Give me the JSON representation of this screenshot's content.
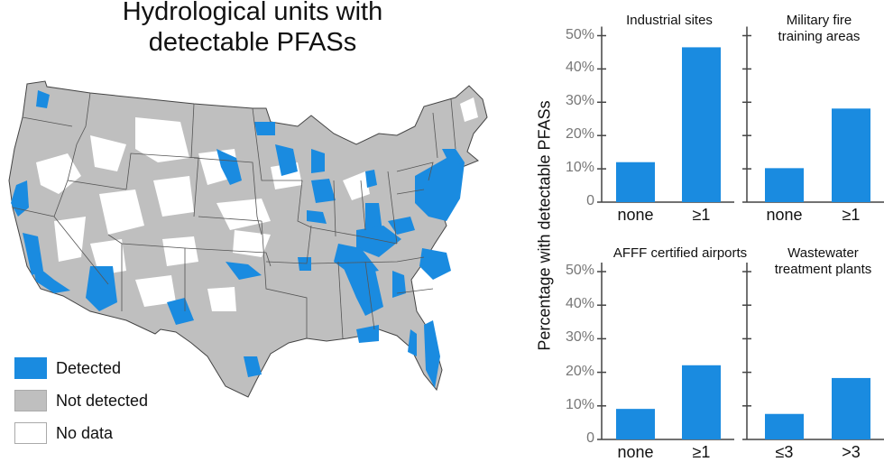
{
  "map": {
    "title_line1": "Hydrological units with",
    "title_line2": "detectable PFASs",
    "colors": {
      "detected": "#1a8be0",
      "not_detected": "#bfbfbf",
      "no_data": "#ffffff",
      "border": "#444444"
    },
    "legend": [
      {
        "label": "Detected",
        "color": "#1a8be0"
      },
      {
        "label": "Not detected",
        "color": "#bfbfbf"
      },
      {
        "label": "No data",
        "color": "#ffffff"
      }
    ]
  },
  "charts": {
    "ylabel": "Percentage with detectable PFASs",
    "yticks": [
      "0",
      "10%",
      "20%",
      "30%",
      "40%",
      "50%"
    ],
    "bar_color": "#1a8be0"
  },
  "chart_data": [
    {
      "type": "bar",
      "title": "Industrial sites",
      "categories": [
        "none",
        "≥1"
      ],
      "values": [
        12,
        46.5
      ],
      "ylabel": "Percentage with detectable PFASs",
      "ylim": [
        0,
        50
      ]
    },
    {
      "type": "bar",
      "title": "Military fire training areas",
      "categories": [
        "none",
        "≥1"
      ],
      "values": [
        10.2,
        28.1
      ],
      "ylabel": "Percentage with detectable PFASs",
      "ylim": [
        0,
        50
      ]
    },
    {
      "type": "bar",
      "title": "AFFF certified airports",
      "categories": [
        "none",
        "≥1"
      ],
      "values": [
        9.1,
        22.1
      ],
      "ylabel": "Percentage with detectable PFASs",
      "ylim": [
        0,
        50
      ]
    },
    {
      "type": "bar",
      "title": "Wastewater treatment plants",
      "categories": [
        "≤3",
        ">3"
      ],
      "values": [
        7.6,
        18.3
      ],
      "ylabel": "Percentage with detectable PFASs",
      "ylim": [
        0,
        50
      ]
    }
  ],
  "panels": [
    {
      "title1": "Industrial sites",
      "title2": ""
    },
    {
      "title1": "Military fire",
      "title2": "training areas"
    },
    {
      "title1": "AFFF certified airports",
      "title2": ""
    },
    {
      "title1": "Wastewater",
      "title2": "treatment plants"
    }
  ]
}
